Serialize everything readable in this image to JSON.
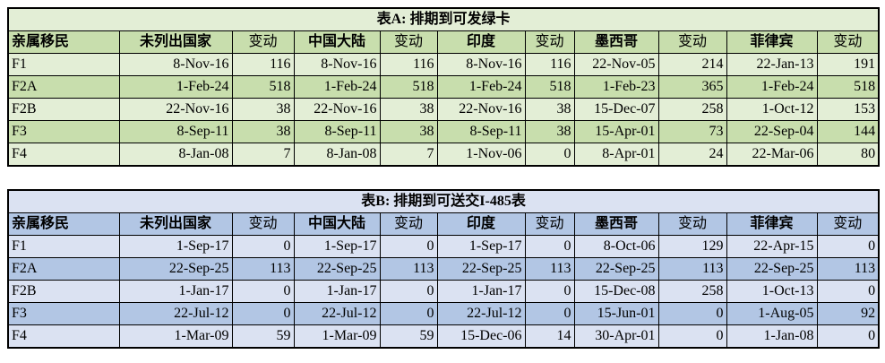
{
  "tables": [
    {
      "id": "table-a-green-card",
      "title": "表A: 排期到可发绿卡",
      "colors": {
        "row_dark": "#c8dead",
        "row_light": "#e3eed6",
        "border": "#000000"
      },
      "columns": [
        "亲属移民",
        "未列出国家",
        "变动",
        "中国大陆",
        "变动",
        "印度",
        "变动",
        "墨西哥",
        "变动",
        "菲律宾",
        "变动"
      ],
      "rows": [
        [
          "F1",
          "8-Nov-16",
          "116",
          "8-Nov-16",
          "116",
          "8-Nov-16",
          "116",
          "22-Nov-05",
          "214",
          "22-Jan-13",
          "191"
        ],
        [
          "F2A",
          "1-Feb-24",
          "518",
          "1-Feb-24",
          "518",
          "1-Feb-24",
          "518",
          "1-Feb-23",
          "365",
          "1-Feb-24",
          "518"
        ],
        [
          "F2B",
          "22-Nov-16",
          "38",
          "22-Nov-16",
          "38",
          "22-Nov-16",
          "38",
          "15-Dec-07",
          "258",
          "1-Oct-12",
          "153"
        ],
        [
          "F3",
          "8-Sep-11",
          "38",
          "8-Sep-11",
          "38",
          "8-Sep-11",
          "38",
          "15-Apr-01",
          "73",
          "22-Sep-04",
          "144"
        ],
        [
          "F4",
          "8-Jan-08",
          "7",
          "8-Jan-08",
          "7",
          "1-Nov-06",
          "0",
          "8-Apr-01",
          "24",
          "22-Mar-06",
          "80"
        ]
      ]
    },
    {
      "id": "table-b-i485",
      "title": "表B: 排期到可送交I-485表",
      "colors": {
        "row_dark": "#b2c6e4",
        "row_light": "#dbe2f2",
        "border": "#000000"
      },
      "columns": [
        "亲属移民",
        "未列出国家",
        "变动",
        "中国大陆",
        "变动",
        "印度",
        "变动",
        "墨西哥",
        "变动",
        "菲律宾",
        "变动"
      ],
      "rows": [
        [
          "F1",
          "1-Sep-17",
          "0",
          "1-Sep-17",
          "0",
          "1-Sep-17",
          "0",
          "8-Oct-06",
          "129",
          "22-Apr-15",
          "0"
        ],
        [
          "F2A",
          "22-Sep-25",
          "113",
          "22-Sep-25",
          "113",
          "22-Sep-25",
          "113",
          "22-Sep-25",
          "113",
          "22-Sep-25",
          "113"
        ],
        [
          "F2B",
          "1-Jan-17",
          "0",
          "1-Jan-17",
          "0",
          "1-Jan-17",
          "0",
          "15-Dec-08",
          "258",
          "1-Oct-13",
          "0"
        ],
        [
          "F3",
          "22-Jul-12",
          "0",
          "22-Jul-12",
          "0",
          "22-Jul-12",
          "0",
          "15-Jun-01",
          "0",
          "1-Aug-05",
          "92"
        ],
        [
          "F4",
          "1-Mar-09",
          "59",
          "1-Mar-09",
          "59",
          "15-Dec-06",
          "14",
          "30-Apr-01",
          "0",
          "1-Jan-08",
          "0"
        ]
      ]
    }
  ]
}
